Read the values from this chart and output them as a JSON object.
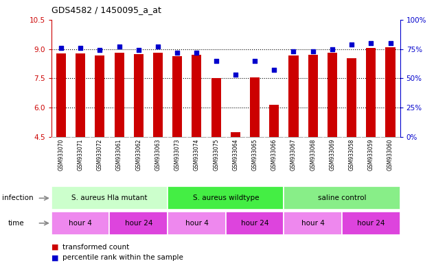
{
  "title": "GDS4582 / 1450095_a_at",
  "samples": [
    "GSM933070",
    "GSM933071",
    "GSM933072",
    "GSM933061",
    "GSM933062",
    "GSM933063",
    "GSM933073",
    "GSM933074",
    "GSM933075",
    "GSM933064",
    "GSM933065",
    "GSM933066",
    "GSM933067",
    "GSM933068",
    "GSM933069",
    "GSM933058",
    "GSM933059",
    "GSM933060"
  ],
  "bar_values": [
    8.77,
    8.77,
    8.68,
    8.82,
    8.72,
    8.8,
    8.62,
    8.69,
    7.5,
    4.75,
    7.54,
    6.15,
    8.67,
    8.71,
    8.8,
    8.54,
    9.05,
    9.1
  ],
  "dot_values": [
    76,
    76,
    74,
    77,
    74,
    77,
    72,
    72,
    65,
    53,
    65,
    57,
    73,
    73,
    75,
    79,
    80,
    80
  ],
  "ylim_left": [
    4.5,
    10.5
  ],
  "ylim_right": [
    0,
    100
  ],
  "yticks_left": [
    4.5,
    6.0,
    7.5,
    9.0,
    10.5
  ],
  "yticks_right": [
    0,
    25,
    50,
    75,
    100
  ],
  "ytick_labels_right": [
    "0%",
    "25%",
    "50%",
    "75%",
    "100%"
  ],
  "hlines": [
    6.0,
    7.5,
    9.0
  ],
  "bar_color": "#cc0000",
  "dot_color": "#0000cc",
  "bg_color": "#ffffff",
  "plot_bg": "#ffffff",
  "xtick_bg": "#cccccc",
  "infection_labels": [
    {
      "text": "S. aureus Hla mutant",
      "start": 0,
      "end": 6,
      "color": "#ccffcc"
    },
    {
      "text": "S. aureus wildtype",
      "start": 6,
      "end": 12,
      "color": "#44ee44"
    },
    {
      "text": "saline control",
      "start": 12,
      "end": 18,
      "color": "#88ee88"
    }
  ],
  "time_labels": [
    {
      "text": "hour 4",
      "start": 0,
      "end": 3,
      "color": "#ee88ee"
    },
    {
      "text": "hour 24",
      "start": 3,
      "end": 6,
      "color": "#dd44dd"
    },
    {
      "text": "hour 4",
      "start": 6,
      "end": 9,
      "color": "#ee88ee"
    },
    {
      "text": "hour 24",
      "start": 9,
      "end": 12,
      "color": "#dd44dd"
    },
    {
      "text": "hour 4",
      "start": 12,
      "end": 15,
      "color": "#ee88ee"
    },
    {
      "text": "hour 24",
      "start": 15,
      "end": 18,
      "color": "#dd44dd"
    }
  ],
  "legend_items": [
    {
      "label": "transformed count",
      "color": "#cc0000"
    },
    {
      "label": "percentile rank within the sample",
      "color": "#0000cc"
    }
  ],
  "infection_row_label": "infection",
  "time_row_label": "time",
  "left_axis_color": "#cc0000",
  "right_axis_color": "#0000cc",
  "arrow_color": "#888888"
}
